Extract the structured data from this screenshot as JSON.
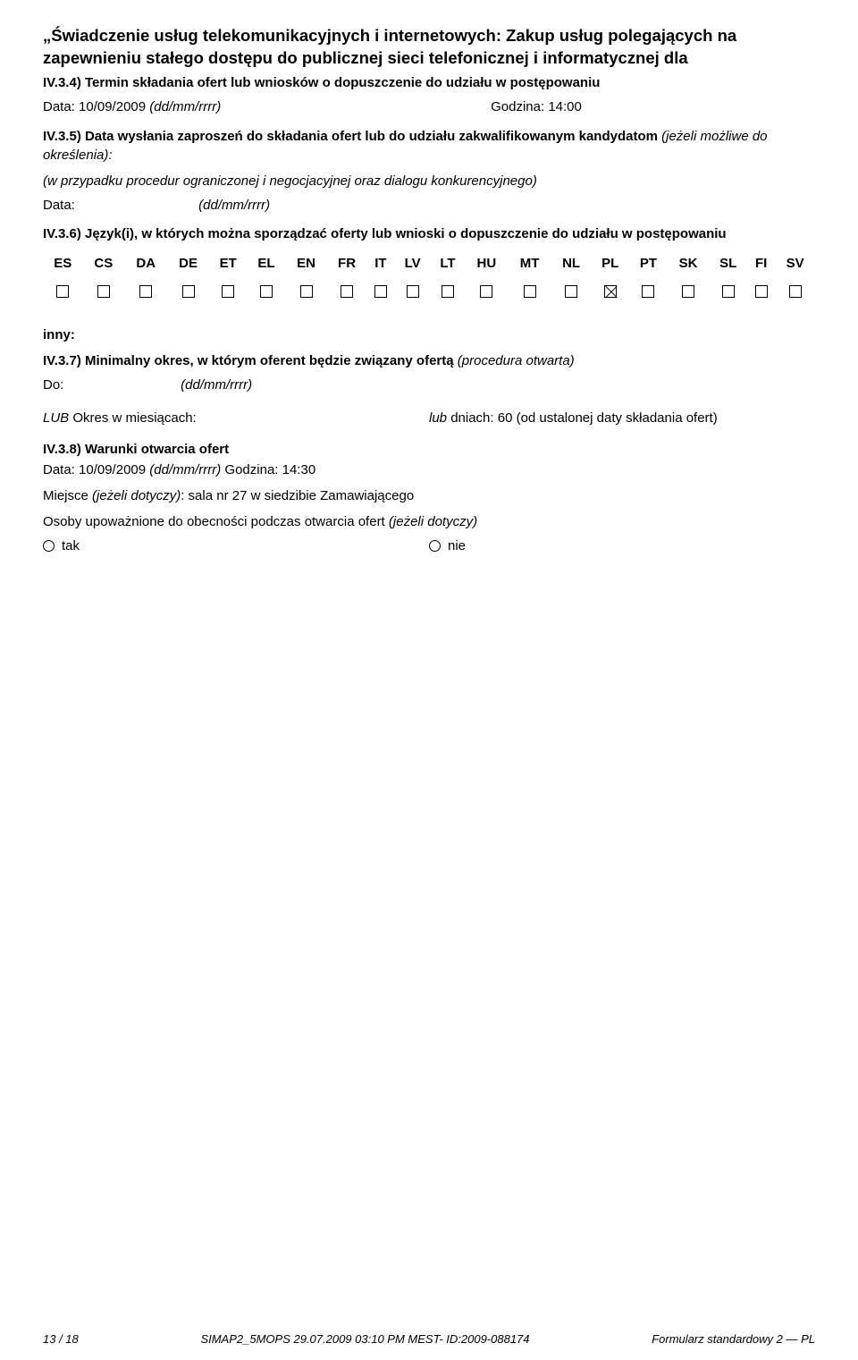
{
  "title": "„Świadczenie usług telekomunikacyjnych i internetowych: Zakup usług polegających na zapewnieniu stałego dostępu do publicznej sieci telefonicznej i informatycznej dla",
  "s34": {
    "heading": "IV.3.4) Termin składania ofert lub wniosków o dopuszczenie do udziału w postępowaniu",
    "data_label": "Data: 10/09/2009 ",
    "data_fmt": "(dd/mm/rrrr)",
    "godzina": "Godzina: 14:00"
  },
  "s35": {
    "heading_pre": "IV.3.5) Data wysłania zaproszeń do składania ofert lub do udziału zakwalifikowanym kandydatom ",
    "heading_ital": "(jeżeli możliwe do określenia):",
    "sub_ital": "(w przypadku procedur ograniczonej i negocjacyjnej oraz dialogu konkurencyjnego)",
    "data_label": "Data:",
    "data_fmt": "(dd/mm/rrrr)"
  },
  "s36": {
    "heading": "IV.3.6) Język(i), w których można sporządzać oferty lub wnioski o dopuszczenie do udziału w postępowaniu",
    "langs": [
      "ES",
      "CS",
      "DA",
      "DE",
      "ET",
      "EL",
      "EN",
      "FR",
      "IT",
      "LV",
      "LT",
      "HU",
      "MT",
      "NL",
      "PL",
      "PT",
      "SK",
      "SL",
      "FI",
      "SV"
    ],
    "checked_index": 14,
    "inny": "inny:"
  },
  "s37": {
    "heading_pre": "IV.3.7) Minimalny okres, w którym oferent będzie związany ofertą ",
    "heading_ital": "(procedura otwarta)",
    "do_label": "Do:",
    "do_fmt": "(dd/mm/rrrr)",
    "lub_left_pre": "LUB",
    "lub_left": " Okres w miesiącach:",
    "lub_right_pre": "lub",
    "lub_right": " dniach: 60 (od ustalonej daty składania ofert)"
  },
  "s38": {
    "heading": "IV.3.8) Warunki otwarcia ofert",
    "l1_pre": "Data: 10/09/2009 ",
    "l1_fmt": "(dd/mm/rrrr)",
    "l1_post": " Godzina: 14:30",
    "l2_pre": "Miejsce ",
    "l2_ital": "(jeżeli dotyczy)",
    "l2_post": ": sala nr 27 w siedzibie Zamawiającego",
    "l3_pre": "Osoby upoważnione do obecności podczas otwarcia ofert ",
    "l3_ital": "(jeżeli dotyczy)",
    "tak": "tak",
    "nie": "nie"
  },
  "footer": {
    "left": "13 / 18",
    "mid": "SIMAP2_5MOPS 29.07.2009 03:10 PM MEST- ID:2009-088174",
    "right": "Formularz standardowy 2 — PL"
  }
}
